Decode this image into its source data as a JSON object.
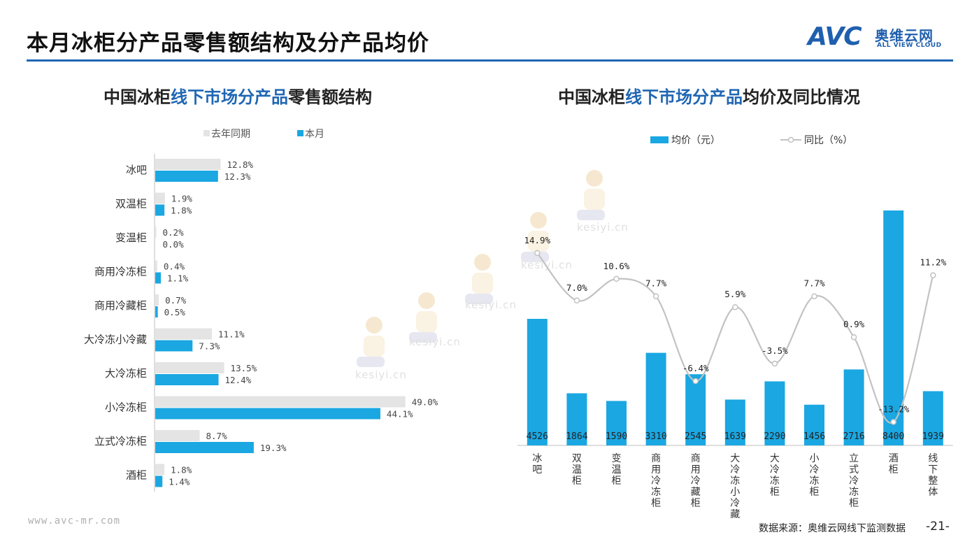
{
  "header": {
    "title": "本月冰柜分产品零售额结构及分产品均价",
    "logo_main": "AVC",
    "logo_cn": "奥维云网",
    "logo_en": "ALL VIEW CLOUD"
  },
  "left_chart_title": {
    "part1": "中国冰柜",
    "part2": "线下市场分产品",
    "part3": "零售额结构"
  },
  "right_chart_title": {
    "part1": "中国冰柜",
    "part2": "线下市场分产品",
    "part3": "均价及同比情况"
  },
  "watermark": {
    "text": "kesiyi.cn"
  },
  "footer": {
    "site": "www.avc-mr.com",
    "source": "数据来源：奥维云网线下监测数据",
    "page": "-21-"
  },
  "colors": {
    "accent": "#1f66b3",
    "bar_this": "#1aa7e2",
    "bar_last": "#e4e4e4",
    "line": "#c2c2c2"
  },
  "chart_data": [
    {
      "type": "bar",
      "orientation": "horizontal",
      "categories": [
        "冰吧",
        "双温柜",
        "变温柜",
        "商用冷冻柜",
        "商用冷藏柜",
        "大冷冻小冷藏",
        "大冷冻柜",
        "小冷冻柜",
        "立式冷冻柜",
        "酒柜"
      ],
      "series": [
        {
          "name": "去年同期",
          "values": [
            12.8,
            1.9,
            0.2,
            0.4,
            0.7,
            11.1,
            13.5,
            49.0,
            8.7,
            1.8
          ],
          "labels": [
            "12.8%",
            "1.9%",
            "0.2%",
            "0.4%",
            "0.7%",
            "11.1%",
            "13.5%",
            "49.0%",
            "8.7%",
            "1.8%"
          ],
          "color": "#e4e4e4"
        },
        {
          "name": "本月",
          "values": [
            12.3,
            1.8,
            0.0,
            1.1,
            0.5,
            7.3,
            12.4,
            44.1,
            19.3,
            1.4
          ],
          "labels": [
            "12.3%",
            "1.8%",
            "0.0%",
            "1.1%",
            "0.5%",
            "7.3%",
            "12.4%",
            "44.1%",
            "19.3%",
            "1.4%"
          ],
          "color": "#1aa7e2"
        }
      ],
      "legend": "top",
      "grid": false
    },
    {
      "type": "bar+line",
      "categories": [
        "冰吧",
        "双温柜",
        "变温柜",
        "商用冷冻柜",
        "商用冷藏柜",
        "大冷冻小冷藏",
        "大冷冻柜",
        "小冷冻柜",
        "立式冷冻柜",
        "酒柜",
        "线下整体"
      ],
      "series": [
        {
          "name": "均价（元）",
          "type": "bar",
          "values": [
            4526,
            1864,
            1590,
            3310,
            2545,
            1639,
            2290,
            1456,
            2716,
            8400,
            1939
          ],
          "labels": [
            "4526",
            "1864",
            "1590",
            "3310",
            "2545",
            "1639",
            "2290",
            "1456",
            "2716",
            "8400",
            "1939"
          ],
          "color": "#1aa7e2"
        },
        {
          "name": "同比（%）",
          "type": "line",
          "values": [
            14.9,
            7.0,
            10.6,
            7.7,
            -6.4,
            5.9,
            -3.5,
            7.7,
            0.9,
            -13.2,
            11.2
          ],
          "labels": [
            "14.9%",
            "7.0%",
            "10.6%",
            "7.7%",
            "-6.4%",
            "5.9%",
            "-3.5%",
            "7.7%",
            "0.9%",
            "-13.2%",
            "11.2%"
          ],
          "color": "#c2c2c2"
        }
      ],
      "legend": "top",
      "grid": false
    }
  ]
}
